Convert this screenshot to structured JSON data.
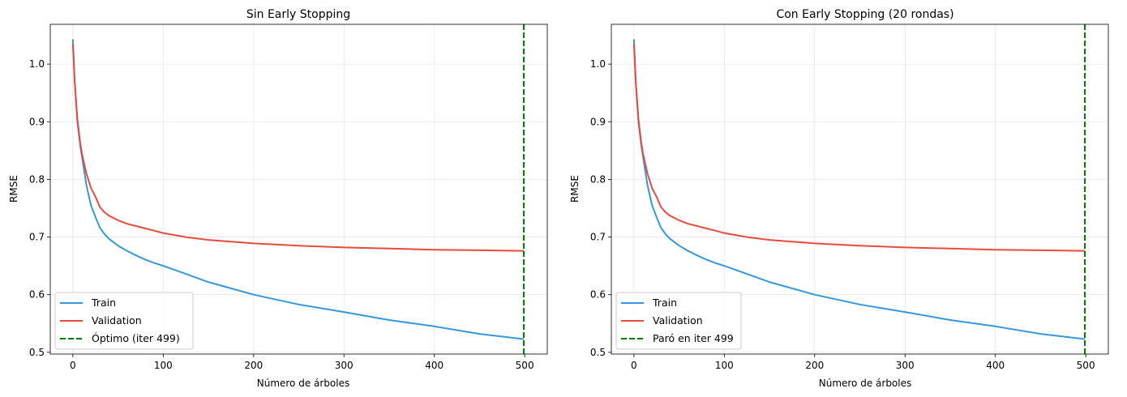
{
  "chart_data": [
    {
      "type": "line",
      "title": "Sin Early Stopping",
      "xlabel": "Número de árboles",
      "ylabel": "RMSE",
      "xlim": [
        -25,
        525
      ],
      "ylim": [
        0.497,
        1.069
      ],
      "xticks": [
        0,
        100,
        200,
        300,
        400,
        500
      ],
      "yticks": [
        0.5,
        0.6,
        0.7,
        0.8,
        0.9,
        1.0
      ],
      "ytick_labels": [
        "0.5",
        "0.6",
        "0.7",
        "0.8",
        "0.9",
        "1.0"
      ],
      "grid": true,
      "legend_placement": "lower-left",
      "x": [
        0,
        2,
        5,
        8,
        10,
        15,
        20,
        25,
        30,
        35,
        40,
        50,
        60,
        70,
        80,
        90,
        100,
        125,
        150,
        175,
        200,
        250,
        300,
        350,
        400,
        450,
        499
      ],
      "series": [
        {
          "name": "Train",
          "color": "#3498db",
          "values": [
            1.043,
            0.97,
            0.9,
            0.86,
            0.84,
            0.79,
            0.755,
            0.735,
            0.716,
            0.705,
            0.697,
            0.685,
            0.676,
            0.668,
            0.661,
            0.655,
            0.65,
            0.636,
            0.622,
            0.611,
            0.6,
            0.583,
            0.57,
            0.556,
            0.545,
            0.532,
            0.523
          ]
        },
        {
          "name": "Validation",
          "color": "#e74c3c",
          "values": [
            1.035,
            0.97,
            0.905,
            0.865,
            0.845,
            0.81,
            0.785,
            0.77,
            0.752,
            0.743,
            0.737,
            0.729,
            0.723,
            0.719,
            0.715,
            0.711,
            0.707,
            0.7,
            0.695,
            0.692,
            0.689,
            0.685,
            0.682,
            0.68,
            0.678,
            0.677,
            0.676
          ]
        }
      ],
      "vline": {
        "x": 499,
        "label": "Óptimo (iter 499)",
        "color": "#008000"
      }
    },
    {
      "type": "line",
      "title": "Con Early Stopping (20 rondas)",
      "xlabel": "Número de árboles",
      "ylabel": "RMSE",
      "xlim": [
        -25,
        525
      ],
      "ylim": [
        0.497,
        1.069
      ],
      "xticks": [
        0,
        100,
        200,
        300,
        400,
        500
      ],
      "yticks": [
        0.5,
        0.6,
        0.7,
        0.8,
        0.9,
        1.0
      ],
      "ytick_labels": [
        "0.5",
        "0.6",
        "0.7",
        "0.8",
        "0.9",
        "1.0"
      ],
      "grid": true,
      "legend_placement": "lower-left",
      "x": [
        0,
        2,
        5,
        8,
        10,
        15,
        20,
        25,
        30,
        35,
        40,
        50,
        60,
        70,
        80,
        90,
        100,
        125,
        150,
        175,
        200,
        250,
        300,
        350,
        400,
        450,
        499
      ],
      "series": [
        {
          "name": "Train",
          "color": "#3498db",
          "values": [
            1.043,
            0.97,
            0.9,
            0.86,
            0.84,
            0.79,
            0.755,
            0.735,
            0.716,
            0.705,
            0.697,
            0.685,
            0.676,
            0.668,
            0.661,
            0.655,
            0.65,
            0.636,
            0.622,
            0.611,
            0.6,
            0.583,
            0.57,
            0.556,
            0.545,
            0.532,
            0.523
          ]
        },
        {
          "name": "Validation",
          "color": "#e74c3c",
          "values": [
            1.035,
            0.97,
            0.905,
            0.865,
            0.845,
            0.81,
            0.785,
            0.77,
            0.752,
            0.743,
            0.737,
            0.729,
            0.723,
            0.719,
            0.715,
            0.711,
            0.707,
            0.7,
            0.695,
            0.692,
            0.689,
            0.685,
            0.682,
            0.68,
            0.678,
            0.677,
            0.676
          ]
        }
      ],
      "vline": {
        "x": 499,
        "label": "Paró en iter 499",
        "color": "#008000"
      }
    }
  ]
}
